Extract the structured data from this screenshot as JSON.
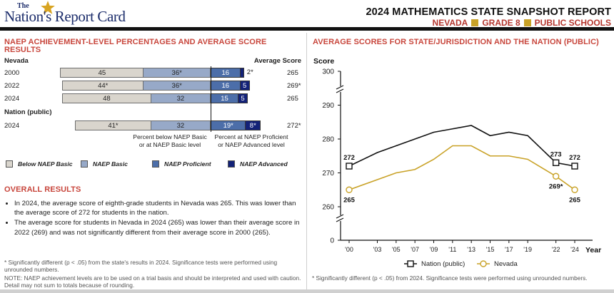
{
  "header": {
    "logo_the": "The",
    "logo_main": "Nation's Report Card",
    "title": "2024 MATHEMATICS STATE SNAPSHOT REPORT",
    "state": "NEVADA",
    "grade": "GRADE 8",
    "school_type": "PUBLIC SCHOOLS",
    "accent_color": "#c8463c",
    "square_color": "#c9a227"
  },
  "left": {
    "title_line1": "NAEP ACHIEVEMENT-LEVEL PERCENTAGES AND AVERAGE SCORE",
    "title_line2": "RESULTS",
    "avg_score_header": "Average Score",
    "state_group": "Nevada",
    "nation_group": "Nation (public)",
    "axis_left_line1": "Percent below NAEP Basic",
    "axis_left_line2": "or at NAEP Basic level",
    "axis_right_line1": "Percent at NAEP Proficient",
    "axis_right_line2": "or NAEP Advanced level",
    "legend": [
      "Below NAEP Basic",
      "NAEP Basic",
      "NAEP Proficient",
      "NAEP Advanced"
    ],
    "overall_title": "OVERALL RESULTS",
    "bullets": [
      "In 2024, the average score of eighth-grade students in Nevada was 265. This was lower than the average score of 272 for students in the nation.",
      "The average score for students in Nevada in 2024 (265) was lower than their average score in 2022 (269) and was not significantly different from their average score in 2000 (265)."
    ],
    "footnote1": "* Significantly different (p < .05) from the state's results in 2024. Significance tests were performed using unrounded numbers.",
    "footnote2": "NOTE: NAEP achievement levels are to be used on a trial basis and should be interpreted and used with caution. Detail may not sum to totals because of rounding."
  },
  "right": {
    "title": "AVERAGE SCORES FOR STATE/JURISDICTION AND THE NATION (PUBLIC)",
    "footnote": "* Significantly different (p < .05) from 2024. Significance tests were performed using unrounded numbers."
  },
  "chart_data": [
    {
      "type": "bar",
      "stacked": true,
      "diverging": true,
      "categories": [
        "2000",
        "2022",
        "2024",
        "2024"
      ],
      "groups": [
        "Nevada",
        "Nevada",
        "Nevada",
        "Nation (public)"
      ],
      "series": [
        {
          "name": "Below NAEP Basic",
          "values": [
            45,
            44,
            48,
            41
          ],
          "labels": [
            "45",
            "44*",
            "48",
            "41*"
          ],
          "color": "#d9d5cd"
        },
        {
          "name": "NAEP Basic",
          "values": [
            36,
            36,
            32,
            32
          ],
          "labels": [
            "36*",
            "36*",
            "32",
            "32"
          ],
          "color": "#97a9c8"
        },
        {
          "name": "NAEP Proficient",
          "values": [
            16,
            16,
            15,
            19
          ],
          "labels": [
            "16",
            "16",
            "15",
            "19*"
          ],
          "color": "#4c6ea9"
        },
        {
          "name": "NAEP Advanced",
          "values": [
            2,
            5,
            5,
            8
          ],
          "labels": [
            "2*",
            "5",
            "5",
            "8*"
          ],
          "color": "#132278"
        }
      ],
      "average_scores": [
        "265",
        "269*",
        "265",
        "272*"
      ]
    },
    {
      "type": "line",
      "ylabel": "Score",
      "xlabel": "Year",
      "ylim": [
        260,
        300
      ],
      "y_ticks": [
        0,
        260,
        270,
        280,
        290,
        300
      ],
      "y_axis_break": true,
      "x_ticks": [
        "'00",
        "'03",
        "'05",
        "'07",
        "'09",
        "'11",
        "'13",
        "'15",
        "'17",
        "'19",
        "'22",
        "'24"
      ],
      "series": [
        {
          "name": "Nation (public)",
          "color": "#111111",
          "marker": "square",
          "x": [
            2000,
            2003,
            2005,
            2007,
            2009,
            2011,
            2013,
            2015,
            2017,
            2019,
            2022,
            2024
          ],
          "values": [
            272,
            276,
            278,
            280,
            282,
            283,
            284,
            281,
            282,
            281,
            273,
            272
          ],
          "point_labels": {
            "2000": "272",
            "2022": "273",
            "2024": "272"
          }
        },
        {
          "name": "Nevada",
          "color": "#c9a227",
          "marker": "circle",
          "x": [
            2000,
            2003,
            2005,
            2007,
            2009,
            2011,
            2013,
            2015,
            2017,
            2019,
            2022,
            2024
          ],
          "values": [
            265,
            268,
            270,
            271,
            274,
            278,
            278,
            275,
            275,
            274,
            269,
            265
          ],
          "point_labels": {
            "2000": "265",
            "2022": "269*",
            "2024": "265"
          }
        }
      ],
      "legend": [
        "Nation (public)",
        "Nevada"
      ]
    }
  ]
}
